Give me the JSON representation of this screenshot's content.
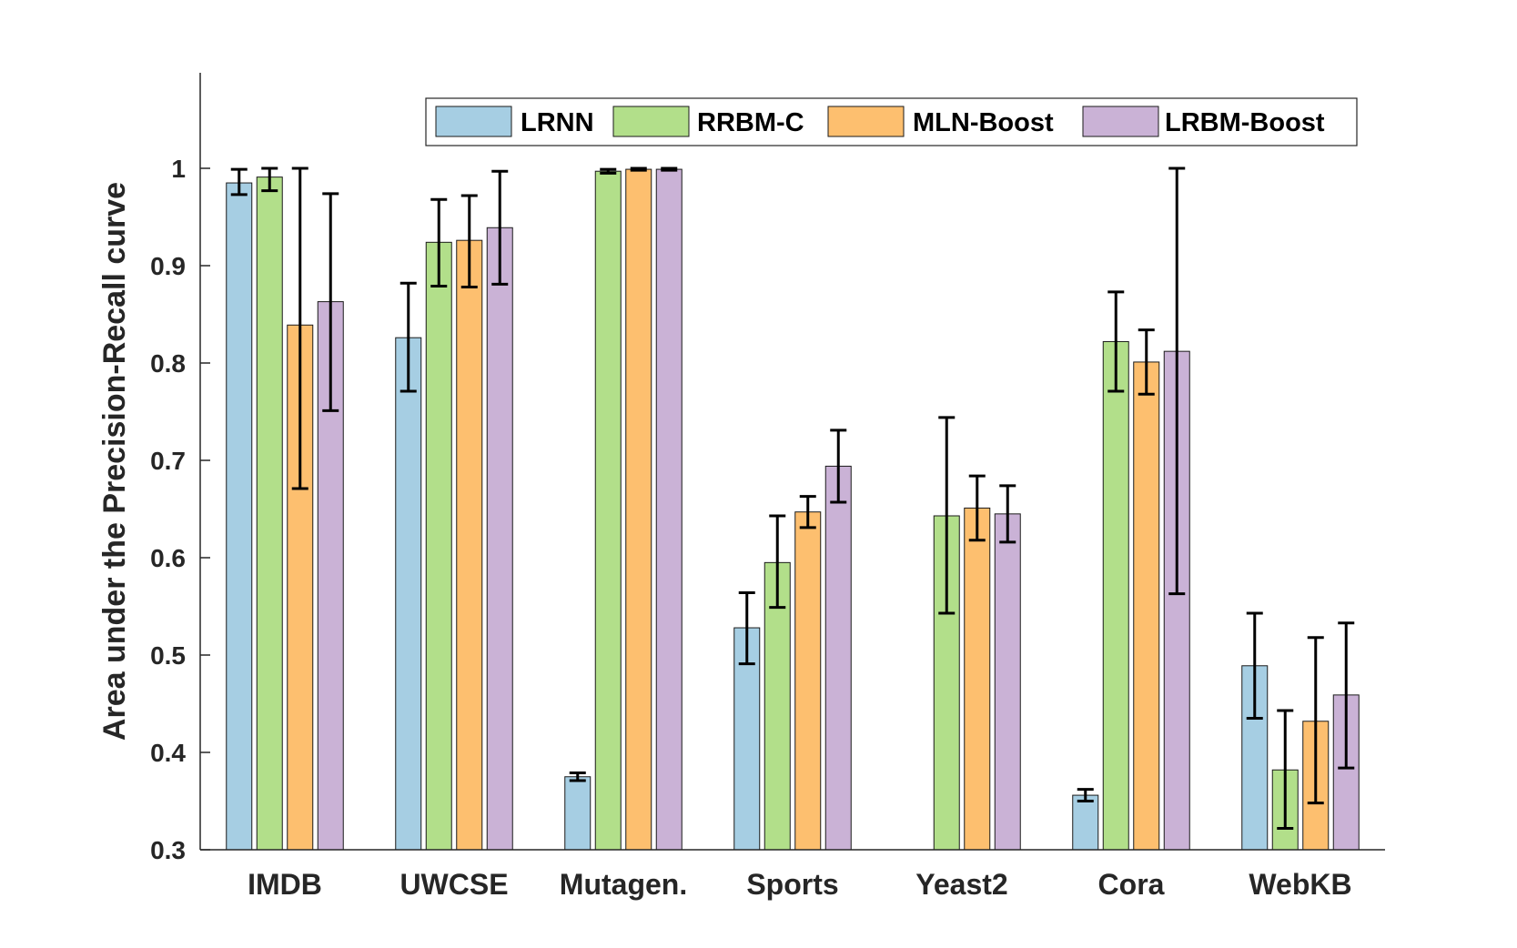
{
  "chart_data": {
    "type": "bar",
    "title": "",
    "xlabel": "",
    "ylabel": "Area under the Precision-Recall curve",
    "ylim": [
      0.3,
      1.1
    ],
    "yticks": [
      0.3,
      0.4,
      0.5,
      0.6,
      0.7,
      0.8,
      0.9,
      1
    ],
    "ytick_labels": [
      "0.3",
      "0.4",
      "0.5",
      "0.6",
      "0.7",
      "0.8",
      "0.9",
      "1"
    ],
    "categories": [
      "IMDB",
      "UWCSE",
      "Mutagen.",
      "Sports",
      "Yeast2",
      "Cora",
      "WebKB"
    ],
    "legend_position": "top-right",
    "grid": false,
    "series": [
      {
        "name": "LRNN",
        "color": "#a6cee3",
        "values": [
          0.985,
          0.826,
          0.375,
          0.528,
          null,
          0.356,
          0.489
        ],
        "err_low": [
          0.973,
          0.771,
          0.371,
          0.491,
          null,
          0.35,
          0.435
        ],
        "err_high": [
          0.999,
          0.882,
          0.379,
          0.564,
          null,
          0.362,
          0.543
        ]
      },
      {
        "name": "RRBM-C",
        "color": "#b2df8a",
        "values": [
          0.991,
          0.924,
          0.997,
          0.595,
          0.643,
          0.822,
          0.382
        ],
        "err_low": [
          0.977,
          0.879,
          0.995,
          0.549,
          0.543,
          0.771,
          0.322
        ],
        "err_high": [
          1.0,
          0.968,
          0.999,
          0.643,
          0.744,
          0.873,
          0.443
        ]
      },
      {
        "name": "MLN-Boost",
        "color": "#fdbf6f",
        "values": [
          0.839,
          0.926,
          0.999,
          0.647,
          0.651,
          0.801,
          0.432
        ],
        "err_low": [
          0.671,
          0.878,
          0.998,
          0.631,
          0.618,
          0.768,
          0.348
        ],
        "err_high": [
          1.0,
          0.972,
          1.0,
          0.663,
          0.684,
          0.834,
          0.518
        ]
      },
      {
        "name": "LRBM-Boost",
        "color": "#cab2d6",
        "values": [
          0.863,
          0.939,
          0.999,
          0.694,
          0.645,
          0.812,
          0.459
        ],
        "err_low": [
          0.751,
          0.881,
          0.998,
          0.657,
          0.616,
          0.563,
          0.384
        ],
        "err_high": [
          0.974,
          0.997,
          1.0,
          0.731,
          0.674,
          1.0,
          0.533
        ]
      }
    ]
  }
}
